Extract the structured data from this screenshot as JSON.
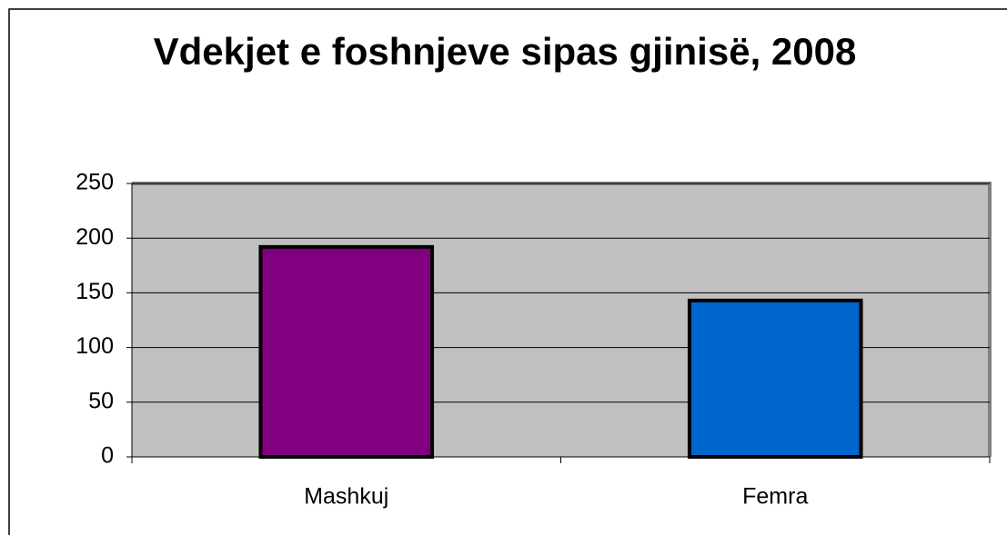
{
  "chart_data": {
    "type": "bar",
    "title": "Vdekjet e foshnjeve sipas gjinisë, 2008",
    "categories": [
      "Mashkuj",
      "Femra"
    ],
    "values": [
      192,
      143
    ],
    "colors": [
      "#800080",
      "#0066cc"
    ],
    "ylim": [
      0,
      250
    ],
    "yticks": [
      0,
      50,
      100,
      150,
      200,
      250
    ],
    "grid": true
  }
}
